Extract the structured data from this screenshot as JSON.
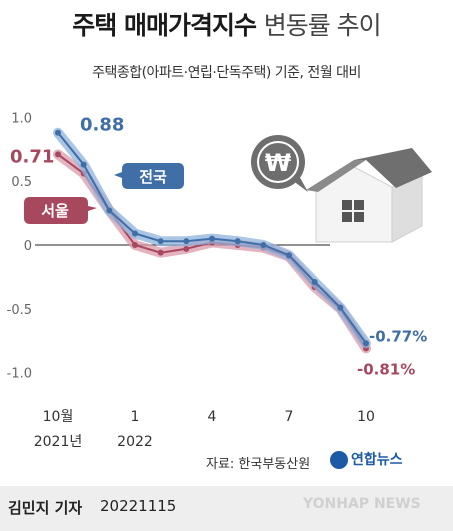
{
  "header": {
    "title_main": "주택 매매가격지수",
    "title_light": "변동률 추이",
    "subtitle": "주택종합(아파트·연립·단독주택) 기준, 전월 대비"
  },
  "chart_data": {
    "type": "line",
    "x": [
      "2021-10",
      "2021-11",
      "2021-12",
      "2022-01",
      "2022-02",
      "2022-03",
      "2022-04",
      "2022-05",
      "2022-06",
      "2022-07",
      "2022-08",
      "2022-09",
      "2022-10"
    ],
    "x_tick_labels": [
      {
        "index": 0,
        "line1": "10월",
        "line2": "2021년"
      },
      {
        "index": 3,
        "line1": "1",
        "line2": "2022"
      },
      {
        "index": 6,
        "line1": "4",
        "line2": ""
      },
      {
        "index": 9,
        "line1": "7",
        "line2": ""
      },
      {
        "index": 12,
        "line1": "10",
        "line2": ""
      }
    ],
    "y_ticks": [
      "1.0",
      "0.5",
      "0",
      "-0.5",
      "-1.0"
    ],
    "y_tick_values": [
      1.0,
      0.5,
      0,
      -0.5,
      -1.0
    ],
    "ylim": [
      -1.05,
      1.05
    ],
    "series": [
      {
        "name": "전국",
        "color": "#3f6fa6",
        "band_color": "#8fb1dc",
        "values": [
          0.88,
          0.63,
          0.27,
          0.09,
          0.03,
          0.03,
          0.05,
          0.03,
          0.0,
          -0.08,
          -0.29,
          -0.49,
          -0.77
        ],
        "start_label": "0.88",
        "end_label": "-0.77%"
      },
      {
        "name": "서울",
        "color": "#a8485f",
        "band_color": "#d99aaa",
        "values": [
          0.71,
          0.56,
          0.27,
          0.0,
          -0.06,
          -0.03,
          0.02,
          0.0,
          -0.02,
          -0.09,
          -0.33,
          -0.5,
          -0.81
        ],
        "start_label": "0.71",
        "end_label": "-0.81%"
      }
    ]
  },
  "icon_won_symbol": "₩",
  "source": "자료: 한국부동산원",
  "logo_text": "연합뉴스",
  "footer": {
    "byline": "김민지 기자",
    "date": "20221115",
    "watermark": "YONHAP NEWS"
  }
}
